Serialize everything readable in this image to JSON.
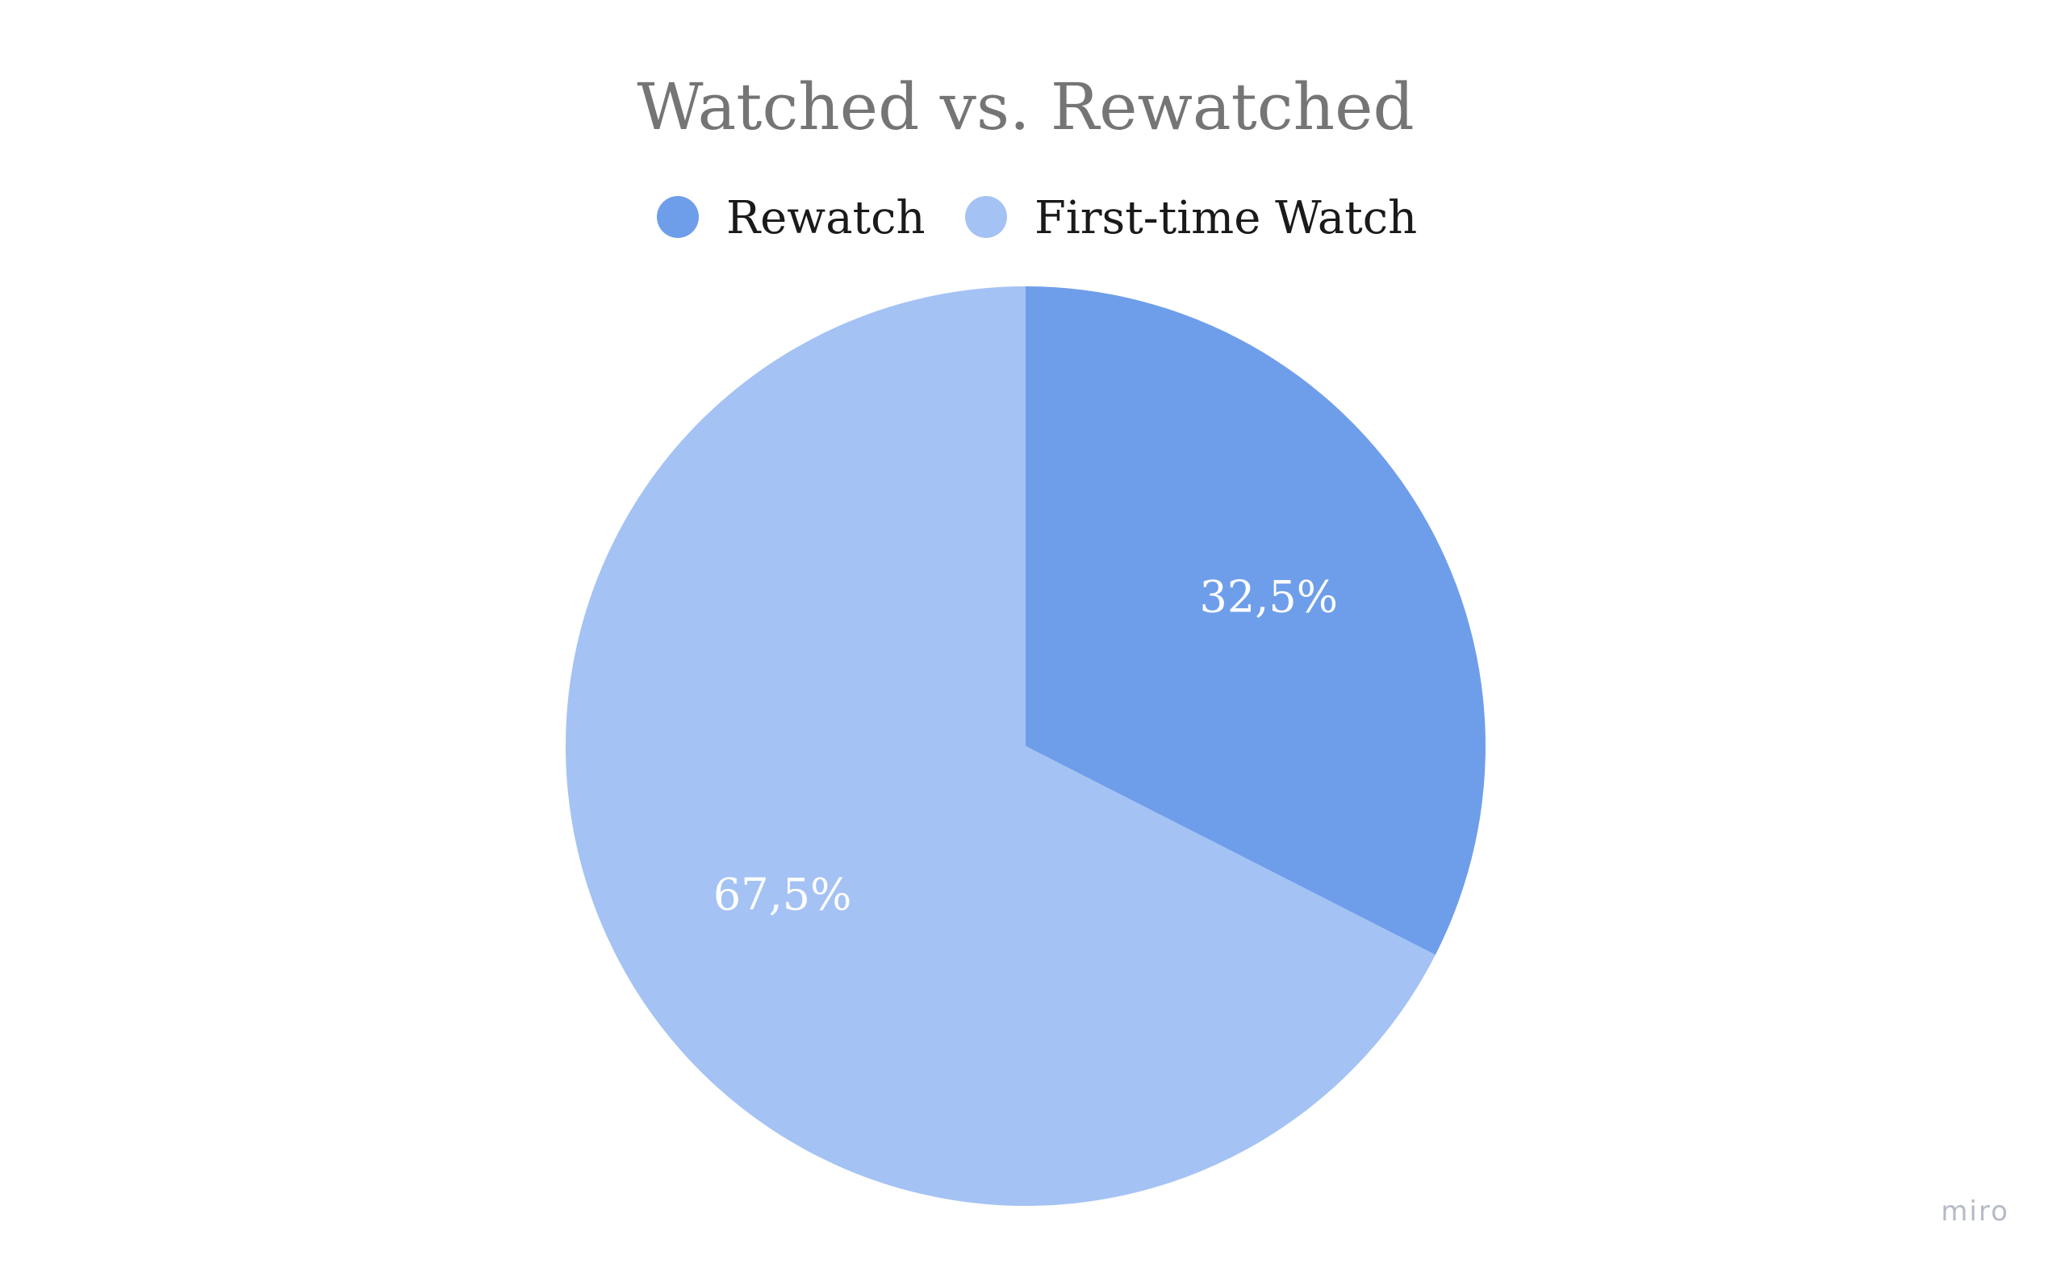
{
  "watermark": "miro",
  "chart_data": {
    "type": "pie",
    "title": "Watched vs. Rewatched",
    "legend_position": "top",
    "categories": [
      "Rewatch",
      "First-time Watch"
    ],
    "values": [
      32.5,
      67.5
    ],
    "labels": [
      "32,5%",
      "67,5%"
    ],
    "colors": [
      "#6e9eea",
      "#a4c2f4"
    ]
  }
}
